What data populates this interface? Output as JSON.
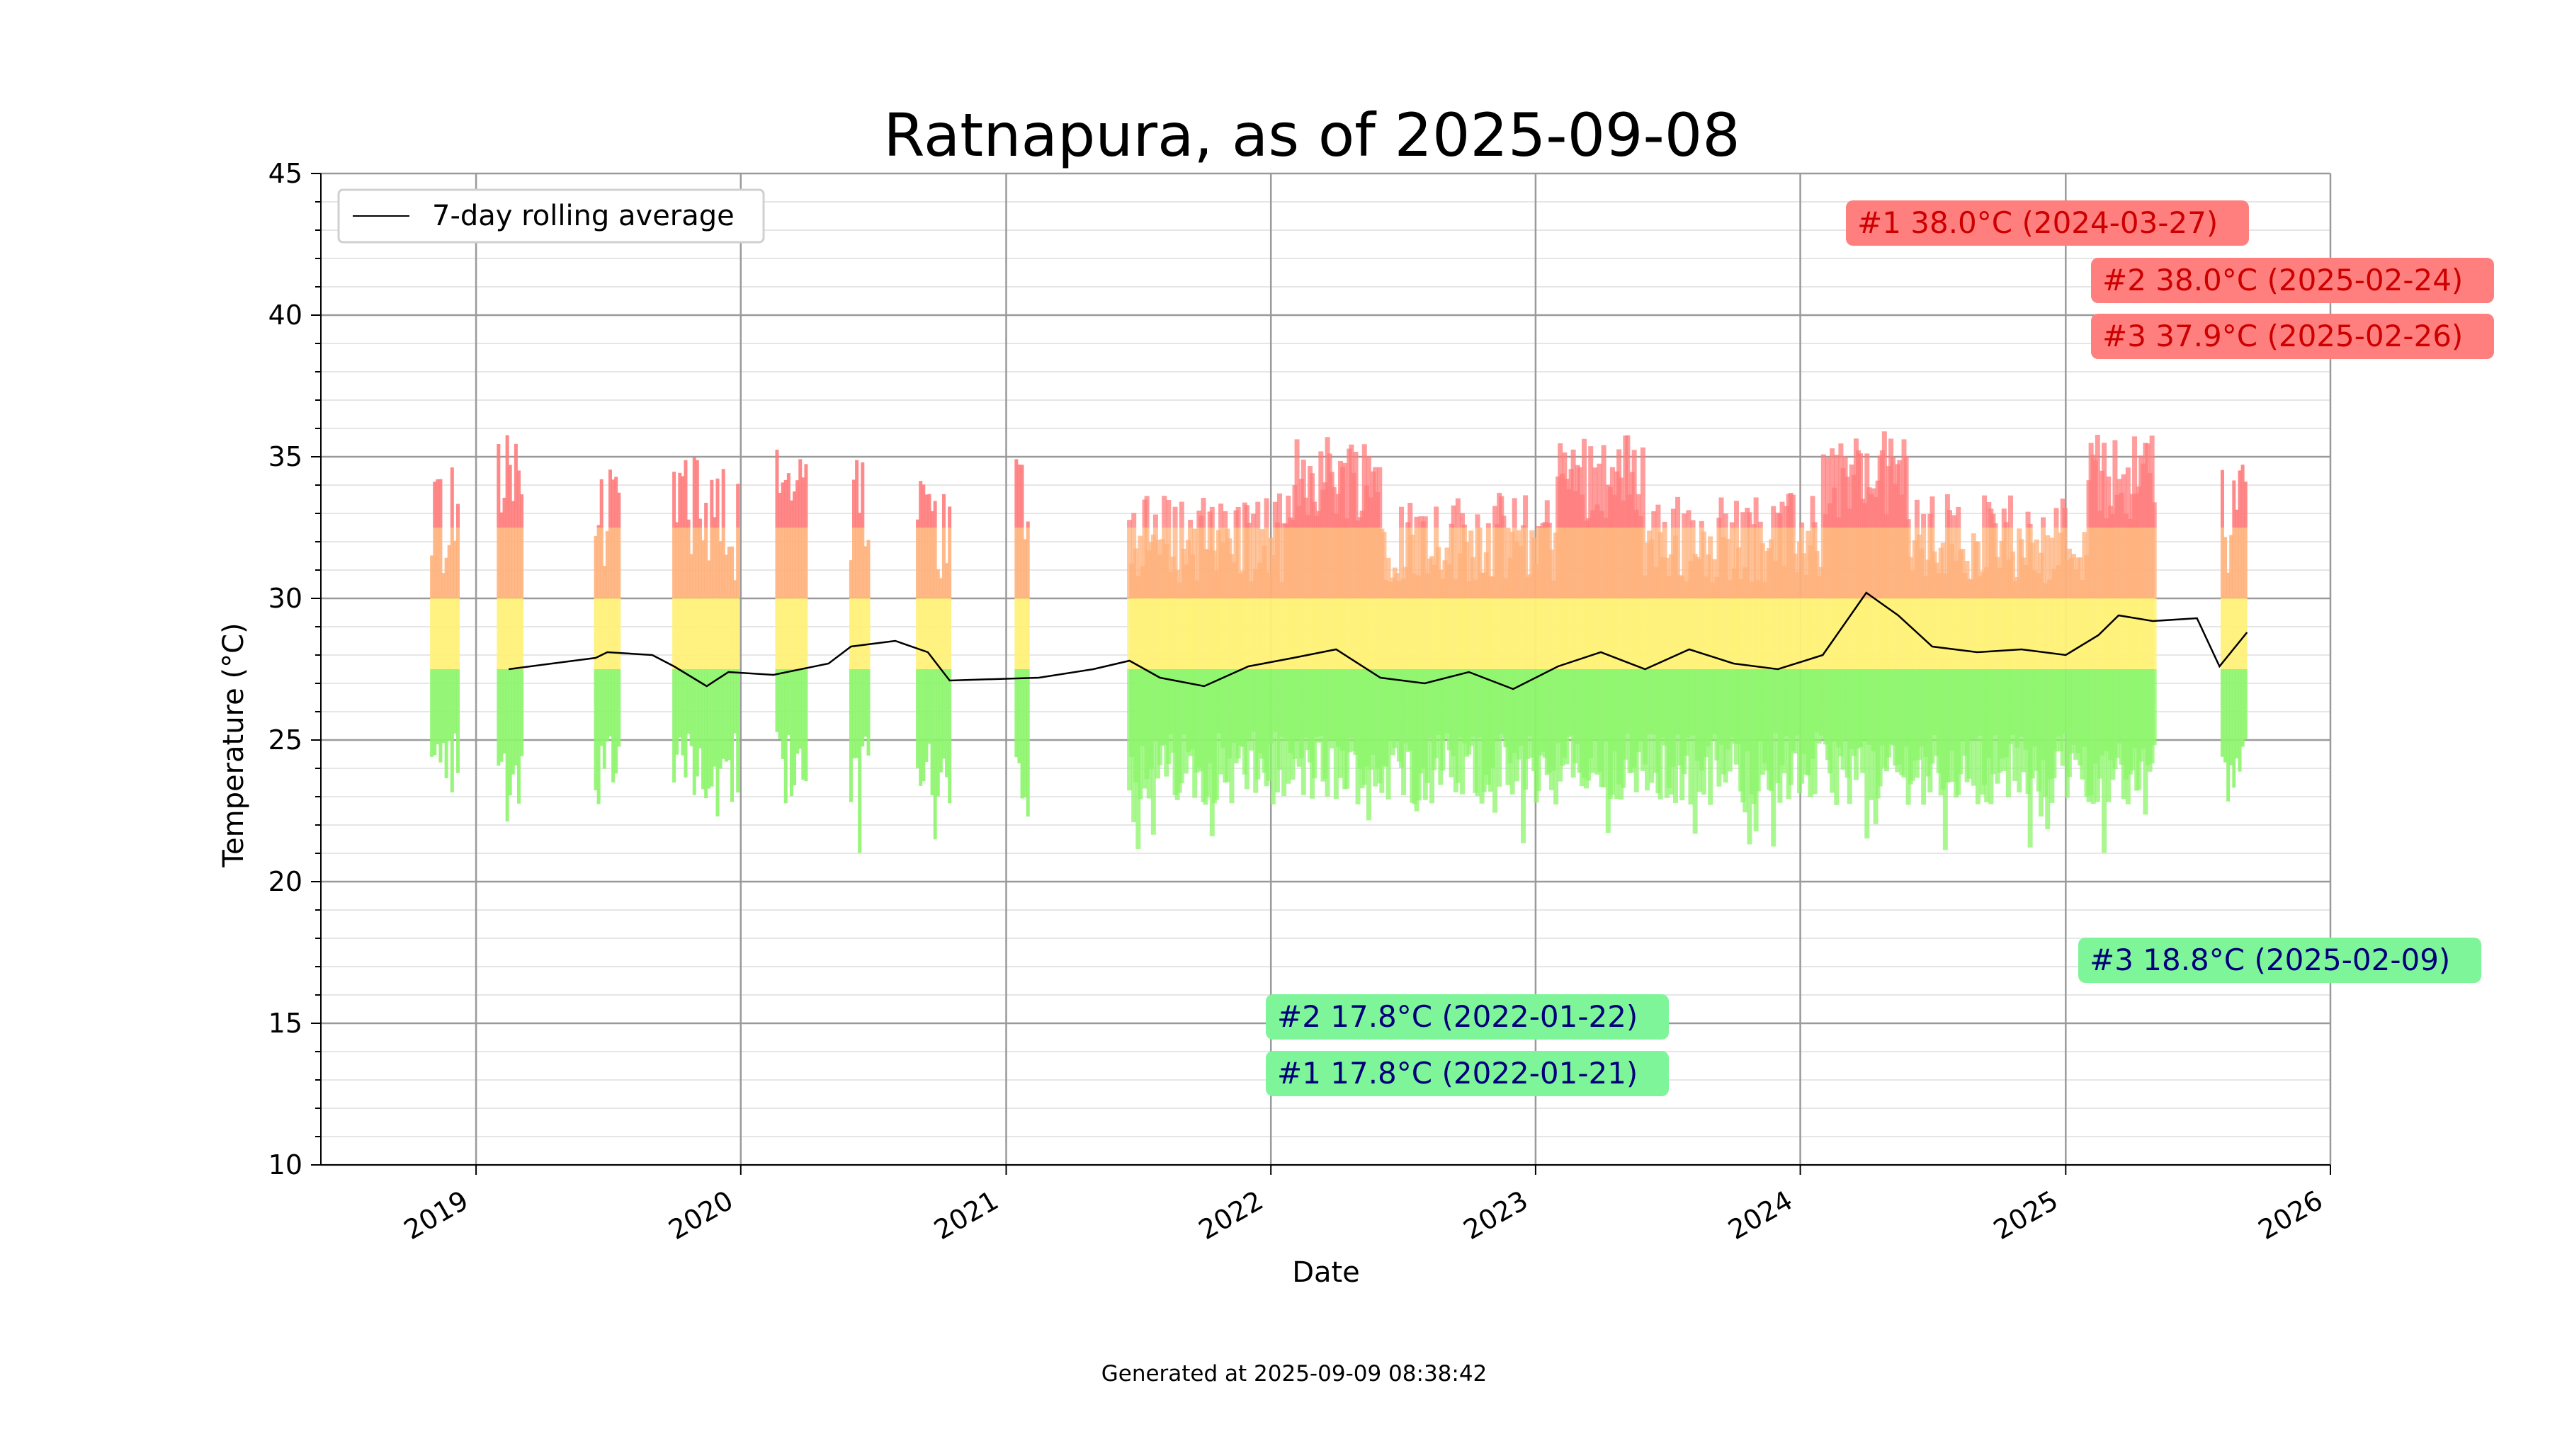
{
  "chart_data": {
    "type": "bar",
    "title": "Ratnapura, as of 2025-09-08",
    "xlabel": "Date",
    "ylabel": "Temperature (°C)",
    "ylim": [
      10,
      45
    ],
    "xlim": [
      "2018-06-01",
      "2026-01-01"
    ],
    "yticks": [
      "10",
      "15",
      "20",
      "25",
      "30",
      "35",
      "40",
      "45"
    ],
    "xticks": [
      "2019",
      "2020",
      "2021",
      "2022",
      "2023",
      "2024",
      "2025",
      "2026"
    ],
    "grid": "on",
    "legend_position": "upper left",
    "legend": [
      "7-day rolling average"
    ],
    "colors": {
      "hot": "#ff7b7b",
      "warm": "#ffb07a",
      "mild": "#fff176",
      "cool": "#8cf56a",
      "rolling": "#000000",
      "high_box": "#ff7f7f",
      "high_text": "#cc0000",
      "low_box": "#7ff59a",
      "low_text": "#00007a"
    },
    "series": [
      {
        "name": "7-day rolling average",
        "points": [
          [
            "2019-02-15",
            27.5
          ],
          [
            "2019-06-15",
            27.9
          ],
          [
            "2019-07-01",
            28.1
          ],
          [
            "2019-09-01",
            28.0
          ],
          [
            "2019-10-01",
            27.6
          ],
          [
            "2019-11-15",
            26.9
          ],
          [
            "2019-12-15",
            27.4
          ],
          [
            "2020-02-15",
            27.3
          ],
          [
            "2020-05-01",
            27.7
          ],
          [
            "2020-06-01",
            28.3
          ],
          [
            "2020-08-01",
            28.5
          ],
          [
            "2020-09-15",
            28.1
          ],
          [
            "2020-10-15",
            27.1
          ],
          [
            "2021-02-15",
            27.2
          ],
          [
            "2021-05-01",
            27.5
          ],
          [
            "2021-06-20",
            27.8
          ],
          [
            "2021-08-01",
            27.2
          ],
          [
            "2021-10-01",
            26.9
          ],
          [
            "2021-12-01",
            27.6
          ],
          [
            "2022-02-01",
            27.9
          ],
          [
            "2022-04-01",
            28.2
          ],
          [
            "2022-06-01",
            27.2
          ],
          [
            "2022-08-01",
            27.0
          ],
          [
            "2022-10-01",
            27.4
          ],
          [
            "2022-12-01",
            26.8
          ],
          [
            "2023-02-01",
            27.6
          ],
          [
            "2023-04-01",
            28.1
          ],
          [
            "2023-06-01",
            27.5
          ],
          [
            "2023-08-01",
            28.2
          ],
          [
            "2023-10-01",
            27.7
          ],
          [
            "2023-12-01",
            27.5
          ],
          [
            "2024-02-01",
            28.0
          ],
          [
            "2024-04-01",
            30.2
          ],
          [
            "2024-05-15",
            29.4
          ],
          [
            "2024-07-01",
            28.3
          ],
          [
            "2024-09-01",
            28.1
          ],
          [
            "2024-11-01",
            28.2
          ],
          [
            "2025-01-01",
            28.0
          ],
          [
            "2025-02-15",
            28.7
          ],
          [
            "2025-03-15",
            29.4
          ],
          [
            "2025-05-01",
            29.2
          ],
          [
            "2025-07-01",
            29.3
          ],
          [
            "2025-08-01",
            27.6
          ],
          [
            "2025-09-08",
            28.8
          ]
        ]
      }
    ],
    "daily_ranges": {
      "segments": [
        [
          "2018-11-01",
          "2018-12-10"
        ],
        [
          "2019-02-01",
          "2019-03-05"
        ],
        [
          "2019-06-15",
          "2019-07-20"
        ],
        [
          "2019-10-01",
          "2019-12-31"
        ],
        [
          "2020-02-20",
          "2020-04-01"
        ],
        [
          "2020-06-01",
          "2020-06-25"
        ],
        [
          "2020-09-01",
          "2020-10-15"
        ],
        [
          "2021-01-15",
          "2021-02-01"
        ],
        [
          "2021-06-20",
          "2025-05-05"
        ],
        [
          "2025-08-05",
          "2025-09-08"
        ]
      ],
      "typical_min": 24.0,
      "typical_max": 31.5,
      "wet_season_max": 35.0,
      "wet_season_min": 22.5
    },
    "annotations": [
      {
        "label": "#1 38.0°C (2024-03-27)",
        "kind": "high",
        "date": "2024-03-27",
        "value": 38.0
      },
      {
        "label": "#2 38.0°C (2025-02-24)",
        "kind": "high",
        "date": "2025-02-24",
        "value": 38.0
      },
      {
        "label": "#3 37.9°C (2025-02-26)",
        "kind": "high",
        "date": "2025-02-26",
        "value": 37.9
      },
      {
        "label": "#2 17.8°C (2022-01-22)",
        "kind": "low",
        "date": "2022-01-22",
        "value": 17.8
      },
      {
        "label": "#1 17.8°C (2022-01-21)",
        "kind": "low",
        "date": "2022-01-21",
        "value": 17.8
      },
      {
        "label": "#3 18.8°C (2025-02-09)",
        "kind": "low",
        "date": "2025-02-09",
        "value": 18.8
      }
    ]
  },
  "footer": "Generated at 2025-09-09 08:38:42"
}
